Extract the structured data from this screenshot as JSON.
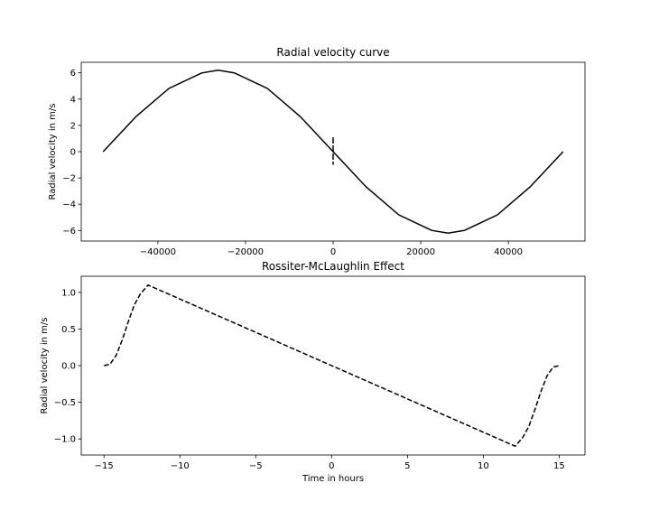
{
  "chart_data": [
    {
      "type": "line",
      "title": "Radial velocity curve",
      "xlabel": "",
      "ylabel": "Radial velocity in m/s",
      "xlim": [
        -57500,
        57500
      ],
      "ylim": [
        -6.8,
        6.8
      ],
      "xticks": [
        -40000,
        -20000,
        0,
        20000,
        40000
      ],
      "xtick_labels": [
        "−40000",
        "−20000",
        "0",
        "20000",
        "40000"
      ],
      "yticks": [
        6,
        4,
        2,
        0,
        -2,
        -4,
        -6
      ],
      "ytick_labels": [
        "6",
        "4",
        "2",
        "0",
        "−2",
        "−4",
        "−6"
      ],
      "grid": false,
      "series": [
        {
          "style": "solid",
          "color": "#000000",
          "x": [
            -52500,
            -45000,
            -37500,
            -30000,
            -26250,
            -22500,
            -15000,
            -7500,
            0,
            7500,
            15000,
            22500,
            26250,
            30000,
            37500,
            45000,
            52500
          ],
          "y": [
            0.0,
            2.67,
            4.81,
            5.99,
            6.2,
            5.99,
            4.81,
            2.67,
            0.0,
            -2.67,
            -4.81,
            -5.99,
            -6.2,
            -5.99,
            -4.81,
            -2.67,
            0.0
          ]
        }
      ],
      "annotations": [
        {
          "type": "vertical_dashed_marker",
          "x": 0,
          "y_range": [
            -1.0,
            1.1
          ]
        }
      ]
    },
    {
      "type": "line",
      "title": "Rossiter-McLaughlin Effect",
      "xlabel": "Time in hours",
      "ylabel": "Radial velocity in m/s",
      "xlim": [
        -16.5,
        16.7
      ],
      "ylim": [
        -1.22,
        1.22
      ],
      "xticks": [
        -15,
        -10,
        -5,
        0,
        5,
        10,
        15
      ],
      "xtick_labels": [
        "−15",
        "−10",
        "−5",
        "0",
        "5",
        "10",
        "15"
      ],
      "yticks": [
        1.0,
        0.5,
        0.0,
        -0.5,
        -1.0
      ],
      "ytick_labels": [
        "1.0",
        "0.5",
        "0.0",
        "−0.5",
        "−1.0"
      ],
      "grid": false,
      "series": [
        {
          "style": "dashed",
          "color": "#000000",
          "x": [
            -15.0,
            -14.6,
            -14.2,
            -13.8,
            -13.4,
            -13.0,
            -12.6,
            -12.1,
            0.0,
            12.1,
            12.6,
            13.0,
            13.4,
            13.8,
            14.2,
            14.6,
            15.0
          ],
          "y": [
            0.0,
            0.02,
            0.14,
            0.35,
            0.6,
            0.83,
            0.98,
            1.1,
            0.0,
            -1.1,
            -0.98,
            -0.83,
            -0.6,
            -0.35,
            -0.14,
            -0.02,
            0.0
          ]
        }
      ]
    }
  ]
}
